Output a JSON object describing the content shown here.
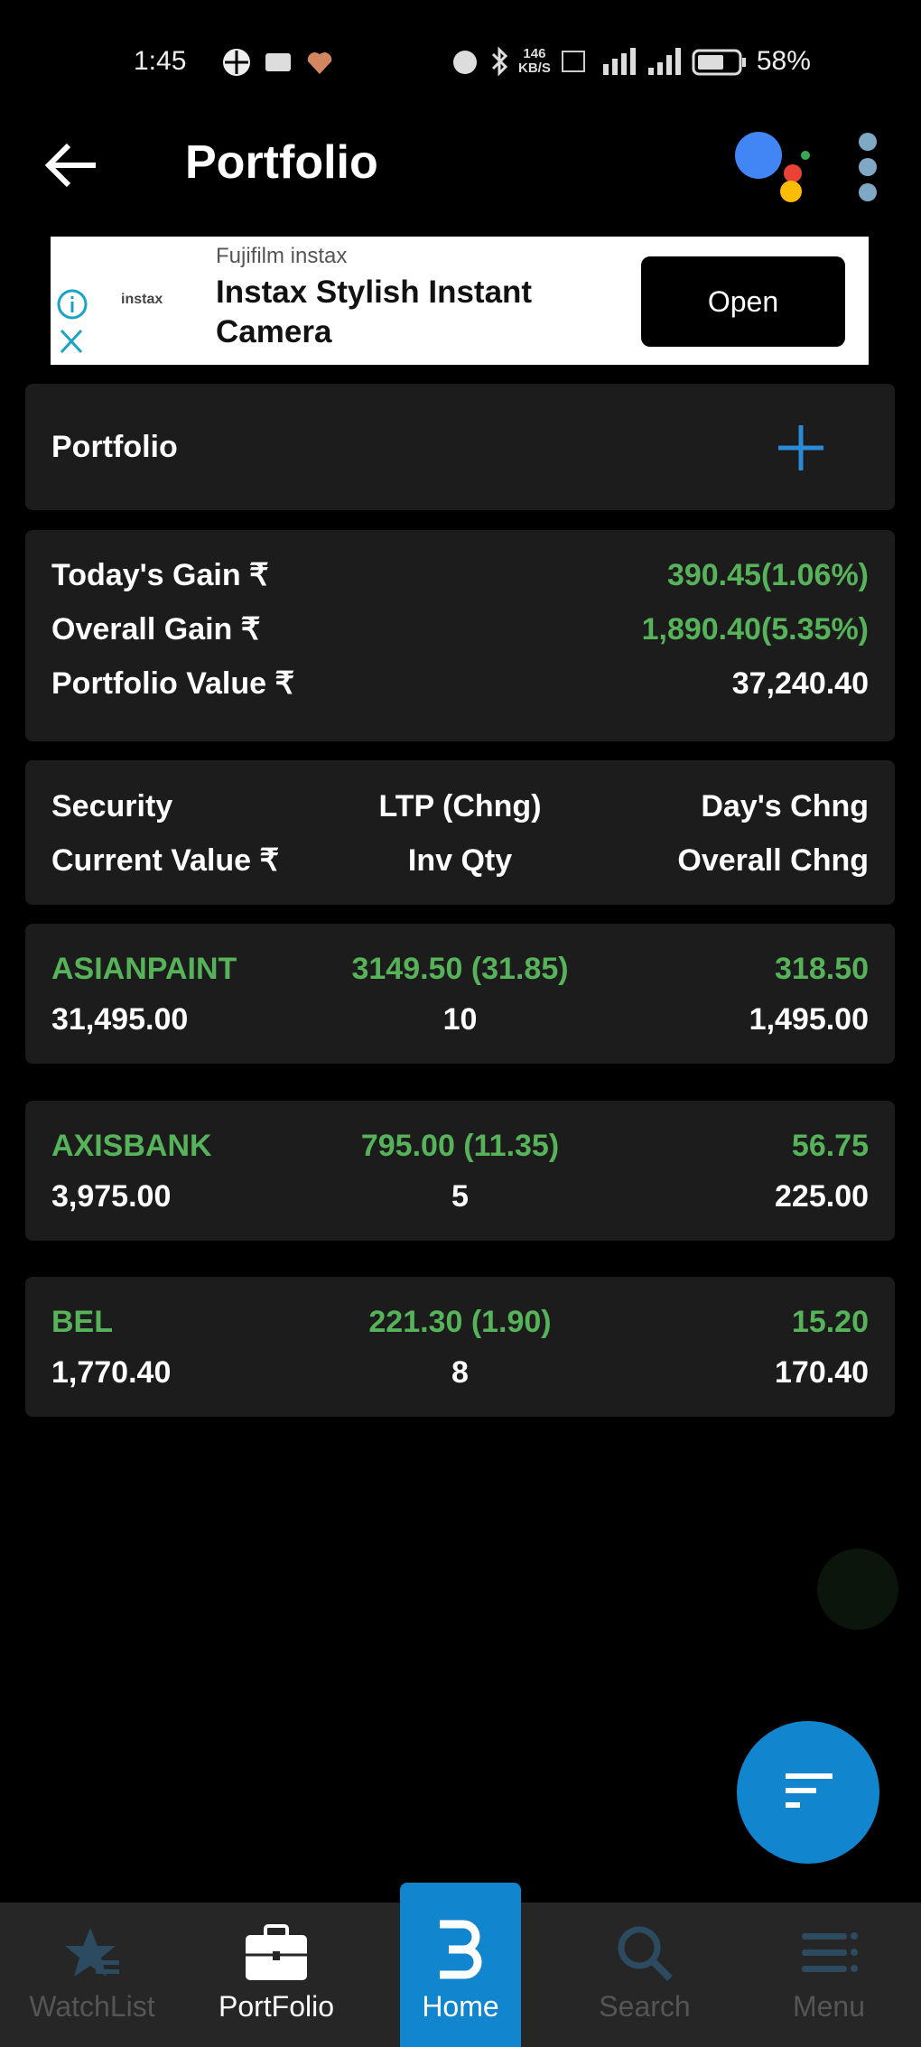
{
  "status_bar": {
    "time": "1:45",
    "net_speed": "146",
    "net_unit": "KB/S",
    "battery": "58%"
  },
  "header": {
    "title": "Portfolio"
  },
  "ad": {
    "advertiser": "Fujifilm instax",
    "logo": "instax",
    "headline_1": "Instax Stylish Instant",
    "headline_2": "Camera",
    "cta": "Open"
  },
  "portfolio_card": {
    "label": "Portfolio"
  },
  "summary": [
    {
      "label": "Today's Gain ₹",
      "value": "390.45(1.06%)"
    },
    {
      "label": "Overall Gain ₹",
      "value": "1,890.40(5.35%)"
    },
    {
      "label": "Portfolio Value ₹",
      "value": "37,240.40"
    }
  ],
  "columns": {
    "row1": [
      "Security",
      "LTP (Chng)",
      "Day's Chng"
    ],
    "row2": [
      "Current Value ₹",
      "Inv Qty",
      "Overall Chng"
    ]
  },
  "holdings": [
    {
      "symbol": "ASIANPAINT",
      "ltp": "3149.50 (31.85)",
      "day_chng": "318.50",
      "current_value": "31,495.00",
      "qty": "10",
      "overall_chng": "1,495.00"
    },
    {
      "symbol": "AXISBANK",
      "ltp": "795.00 (11.35)",
      "day_chng": "56.75",
      "current_value": "3,975.00",
      "qty": "5",
      "overall_chng": "225.00"
    },
    {
      "symbol": "BEL",
      "ltp": "221.30 (1.90)",
      "day_chng": "15.20",
      "current_value": "1,770.40",
      "qty": "8",
      "overall_chng": "170.40"
    }
  ],
  "nav": [
    {
      "label": "WatchList",
      "icon": "star-list-icon"
    },
    {
      "label": "PortFolio",
      "icon": "briefcase-icon"
    },
    {
      "label": "Home",
      "icon": "home-logo-icon"
    },
    {
      "label": "Search",
      "icon": "search-icon"
    },
    {
      "label": "Menu",
      "icon": "menu-icon"
    }
  ],
  "colors": {
    "gain": "#57b35a",
    "accent": "#1186cf",
    "card": "#1c1c1c"
  }
}
